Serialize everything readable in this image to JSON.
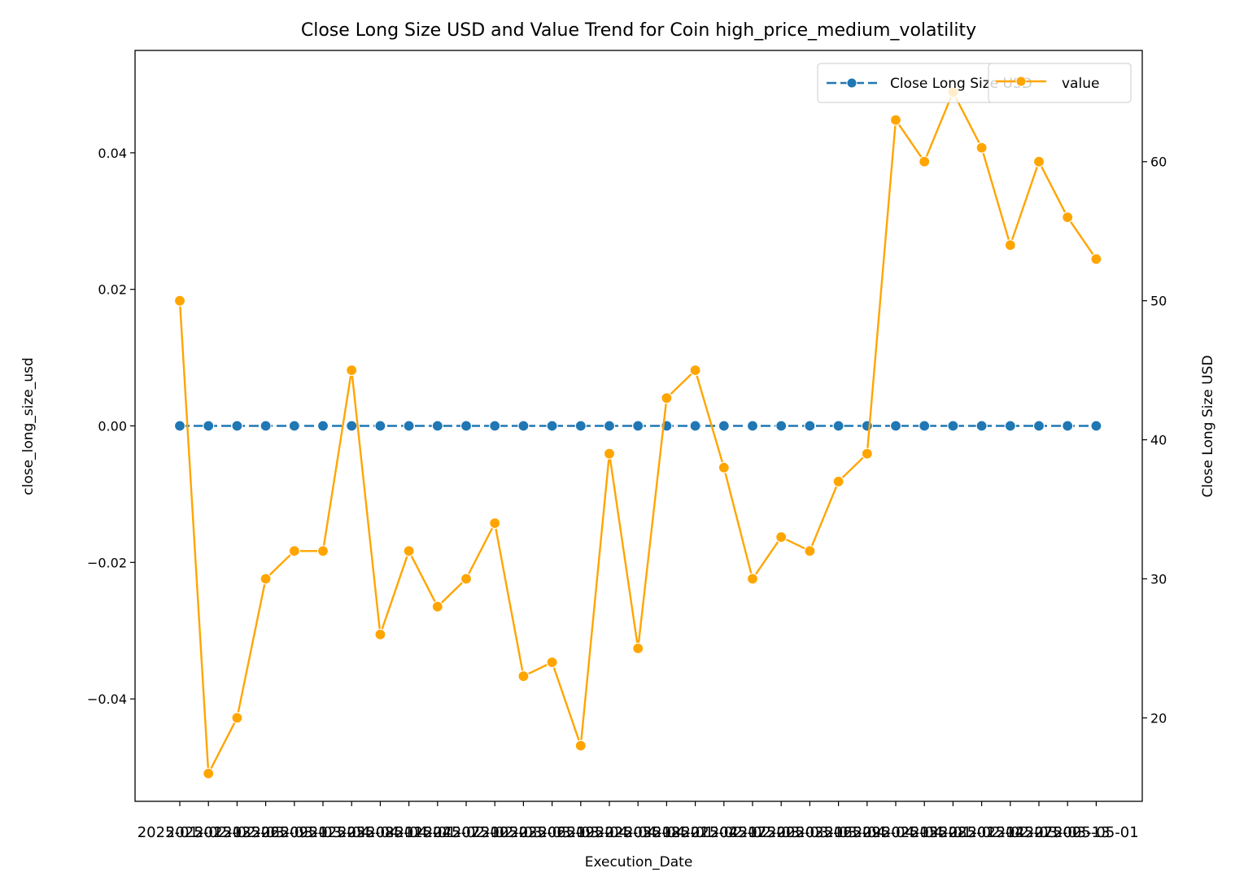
{
  "chart_data": {
    "type": "line",
    "title": "Close Long Size USD and Value Trend for Coin high_price_medium_volatility",
    "xlabel": "Execution_Date",
    "ylabel_left": "close_long_size_usd",
    "ylabel_right": "Close Long Size USD",
    "x_count": 33,
    "x_tick_first": "2025-01-01",
    "x_tick_last": "2025-05-01",
    "left_axis": {
      "ylim": [
        -0.055,
        0.055
      ],
      "ticks": [
        -0.04,
        -0.02,
        0.0,
        0.02,
        0.04
      ],
      "tick_labels": [
        "−0.04",
        "−0.02",
        "0.00",
        "0.02",
        "0.04"
      ]
    },
    "right_axis": {
      "ylim": [
        14.0,
        68.0
      ],
      "ticks": [
        20,
        30,
        40,
        50,
        60
      ],
      "tick_labels": [
        "20",
        "30",
        "40",
        "50",
        "60"
      ]
    },
    "series": [
      {
        "name": "Close Long Size USD",
        "axis": "left",
        "color": "#1f77b4",
        "marker": "circle",
        "linestyle": "dashed",
        "values": [
          0,
          0,
          0,
          0,
          0,
          0,
          0,
          0,
          0,
          0,
          0,
          0,
          0,
          0,
          0,
          0,
          0,
          0,
          0,
          0,
          0,
          0,
          0,
          0,
          0,
          0,
          0,
          0,
          0,
          0,
          0,
          0,
          0
        ]
      },
      {
        "name": "value",
        "axis": "right",
        "color": "#ffa500",
        "marker": "circle",
        "linestyle": "solid",
        "values": [
          50,
          16,
          20,
          30,
          32,
          32,
          45,
          26,
          32,
          28,
          30,
          34,
          23,
          24,
          18,
          39,
          25,
          43,
          45,
          38,
          30,
          33,
          32,
          37,
          39,
          63,
          60,
          65,
          61,
          54,
          60,
          56,
          53
        ]
      }
    ],
    "legend_left": {
      "placement": "upper-right",
      "label": "Close Long Size USD"
    },
    "legend_right": {
      "placement": "upper-right",
      "label": "value"
    },
    "grid": false
  }
}
